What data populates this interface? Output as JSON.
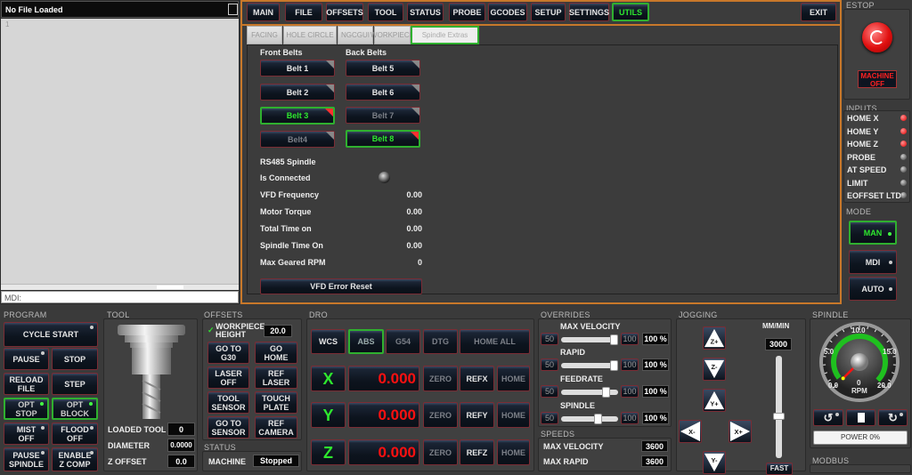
{
  "file_panel": {
    "title": "No File Loaded",
    "line_number": "1",
    "mdi_placeholder": "MDI:"
  },
  "main_tabs": {
    "items": [
      "MAIN",
      "FILE",
      "OFFSETS",
      "TOOL",
      "STATUS",
      "PROBE",
      "GCODES",
      "SETUP",
      "SETTINGS",
      "UTILS"
    ],
    "active": "UTILS",
    "exit": "EXIT"
  },
  "sub_tabs": {
    "items": [
      "FACING",
      "HOLE CIRCLE",
      "NGCGUI",
      "WORKPIECE",
      "Spindle Extras"
    ],
    "active": "Spindle Extras"
  },
  "spindle_extras": {
    "front_label": "Front Belts",
    "back_label": "Back Belts",
    "front_belts": [
      {
        "label": "Belt 1",
        "state": "normal"
      },
      {
        "label": "Belt 2",
        "state": "normal"
      },
      {
        "label": "Belt 3",
        "state": "active"
      },
      {
        "label": "Belt4",
        "state": "disabled"
      }
    ],
    "back_belts": [
      {
        "label": "Belt 5",
        "state": "normal"
      },
      {
        "label": "Belt 6",
        "state": "normal"
      },
      {
        "label": "Belt 7",
        "state": "disabled"
      },
      {
        "label": "Belt 8",
        "state": "active"
      }
    ],
    "rs485_label": "RS485 Spindle",
    "connected_label": "Is Connected",
    "connected": false,
    "rows": [
      {
        "label": "VFD Frequency",
        "value": "0.00"
      },
      {
        "label": "Motor Torque",
        "value": "0.00"
      },
      {
        "label": "Total Time on",
        "value": "0.00"
      },
      {
        "label": "Spindle Time On",
        "value": "0.00"
      },
      {
        "label": "Max Geared RPM",
        "value": "0"
      }
    ],
    "reset": "VFD Error Reset"
  },
  "estop": {
    "label": "ESTOP",
    "machine_line1": "MACHINE",
    "machine_line2": "OFF"
  },
  "inputs": {
    "label": "INPUTS",
    "items": [
      {
        "label": "HOME X",
        "on": true
      },
      {
        "label": "HOME Y",
        "on": true
      },
      {
        "label": "HOME Z",
        "on": true
      },
      {
        "label": "PROBE",
        "on": false
      },
      {
        "label": "AT SPEED",
        "on": false
      },
      {
        "label": "LIMIT",
        "on": false
      },
      {
        "label": "EOFFSET LTD",
        "on": false
      }
    ]
  },
  "mode": {
    "label": "MODE",
    "items": [
      "MAN",
      "MDI",
      "AUTO"
    ],
    "active": "MAN"
  },
  "program": {
    "label": "PROGRAM",
    "cycle_start": "CYCLE START",
    "buttons": [
      [
        "PAUSE",
        "STOP"
      ],
      [
        "RELOAD FILE",
        "STEP"
      ],
      [
        "OPT STOP",
        "OPT BLOCK"
      ],
      [
        "MIST OFF",
        "FLOOD OFF"
      ],
      [
        "PAUSE SPINDLE",
        "ENABLE Z COMP"
      ]
    ]
  },
  "tool": {
    "label": "TOOL",
    "loaded_tool_label": "LOADED TOOL",
    "loaded_tool": "0",
    "diameter_label": "DIAMETER",
    "diameter": "0.0000",
    "z_offset_label": "Z OFFSET",
    "z_offset": "0.0"
  },
  "offsets": {
    "label": "OFFSETS",
    "workpiece_height_label": "WORKPIECE HEIGHT",
    "workpiece_height": "20.0",
    "buttons": [
      [
        "GO TO G30",
        "GO HOME"
      ],
      [
        "LASER OFF",
        "REF LASER"
      ],
      [
        "TOOL SENSOR",
        "TOUCH PLATE"
      ],
      [
        "GO TO SENSOR",
        "REF CAMERA"
      ]
    ]
  },
  "status": {
    "label": "STATUS",
    "machine_label": "MACHINE",
    "machine": "Stopped"
  },
  "dro": {
    "label": "DRO",
    "buttons": [
      "WCS",
      "ABS",
      "G54",
      "DTG",
      "HOME ALL"
    ],
    "active": "ABS",
    "axes": [
      {
        "name": "X",
        "value": "0.000",
        "zero": "ZERO",
        "ref": "REFX",
        "home": "HOME"
      },
      {
        "name": "Y",
        "value": "0.000",
        "zero": "ZERO",
        "ref": "REFY",
        "home": "HOME"
      },
      {
        "name": "Z",
        "value": "0.000",
        "zero": "ZERO",
        "ref": "REFZ",
        "home": "HOME"
      }
    ]
  },
  "overrides": {
    "label": "OVERRIDES",
    "items": [
      {
        "label": "MAX VELOCITY",
        "min": "50",
        "max": "100",
        "percent": "100 %",
        "slider_position": 1.0
      },
      {
        "label": "RAPID",
        "min": "50",
        "max": "100",
        "percent": "100 %",
        "slider_position": 1.0
      },
      {
        "label": "FEEDRATE",
        "min": "50",
        "max": "100",
        "percent": "100 %",
        "slider_position": 0.83
      },
      {
        "label": "SPINDLE",
        "min": "50",
        "max": "100",
        "percent": "100 %",
        "slider_position": 0.67
      }
    ]
  },
  "speeds": {
    "label": "SPEEDS",
    "items": [
      {
        "label": "MAX VELOCITY",
        "value": "3600"
      },
      {
        "label": "MAX RAPID",
        "value": "3600"
      }
    ]
  },
  "jogging": {
    "label": "JOGGING",
    "buttons": [
      "Z+",
      "Z-",
      "Y+",
      "X-",
      "X+",
      "Y-"
    ],
    "rate_label": "MM/MIN",
    "rate": "3000",
    "fast": "FAST",
    "slider_position": 0.4
  },
  "spindle": {
    "label": "SPINDLE",
    "ticks": [
      "0.0",
      "5.0",
      "10.0",
      "15.0",
      "20.0"
    ],
    "rpm": "0",
    "rpm_label": "RPM",
    "power": "POWER 0%",
    "modbus_label": "MODBUS"
  },
  "colors": {
    "accent_border": "#c8782a",
    "active_green": "#2ee82e",
    "dro_value": "#ff1010",
    "led_red": "#e00000"
  }
}
